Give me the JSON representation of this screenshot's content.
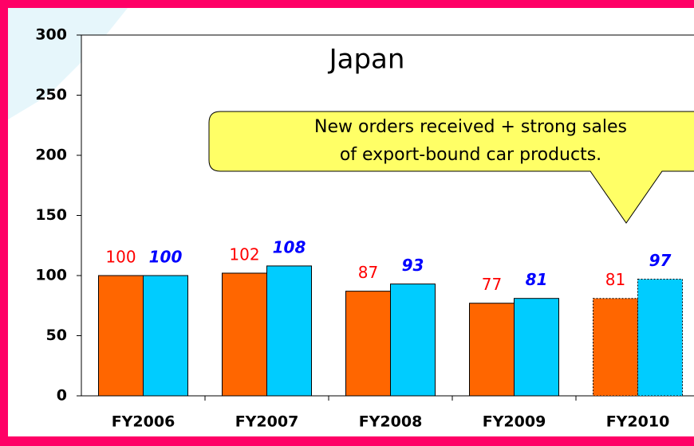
{
  "chart_data": {
    "type": "bar",
    "title": "Japan",
    "annotation": [
      "New orders received + strong sales",
      "of export-bound car products."
    ],
    "categories": [
      "FY2006",
      "FY2007",
      "FY2008",
      "FY2009",
      "FY2010"
    ],
    "series": [
      {
        "color": "#ff6600",
        "values": [
          100,
          102,
          87,
          77,
          81
        ]
      },
      {
        "color": "#00ccff",
        "values": [
          100,
          108,
          93,
          81,
          97
        ]
      }
    ],
    "dashed": [
      false,
      false,
      false,
      false,
      true
    ],
    "ylim": [
      0,
      300
    ],
    "yticks": [
      0,
      50,
      100,
      150,
      200,
      250,
      300
    ]
  }
}
